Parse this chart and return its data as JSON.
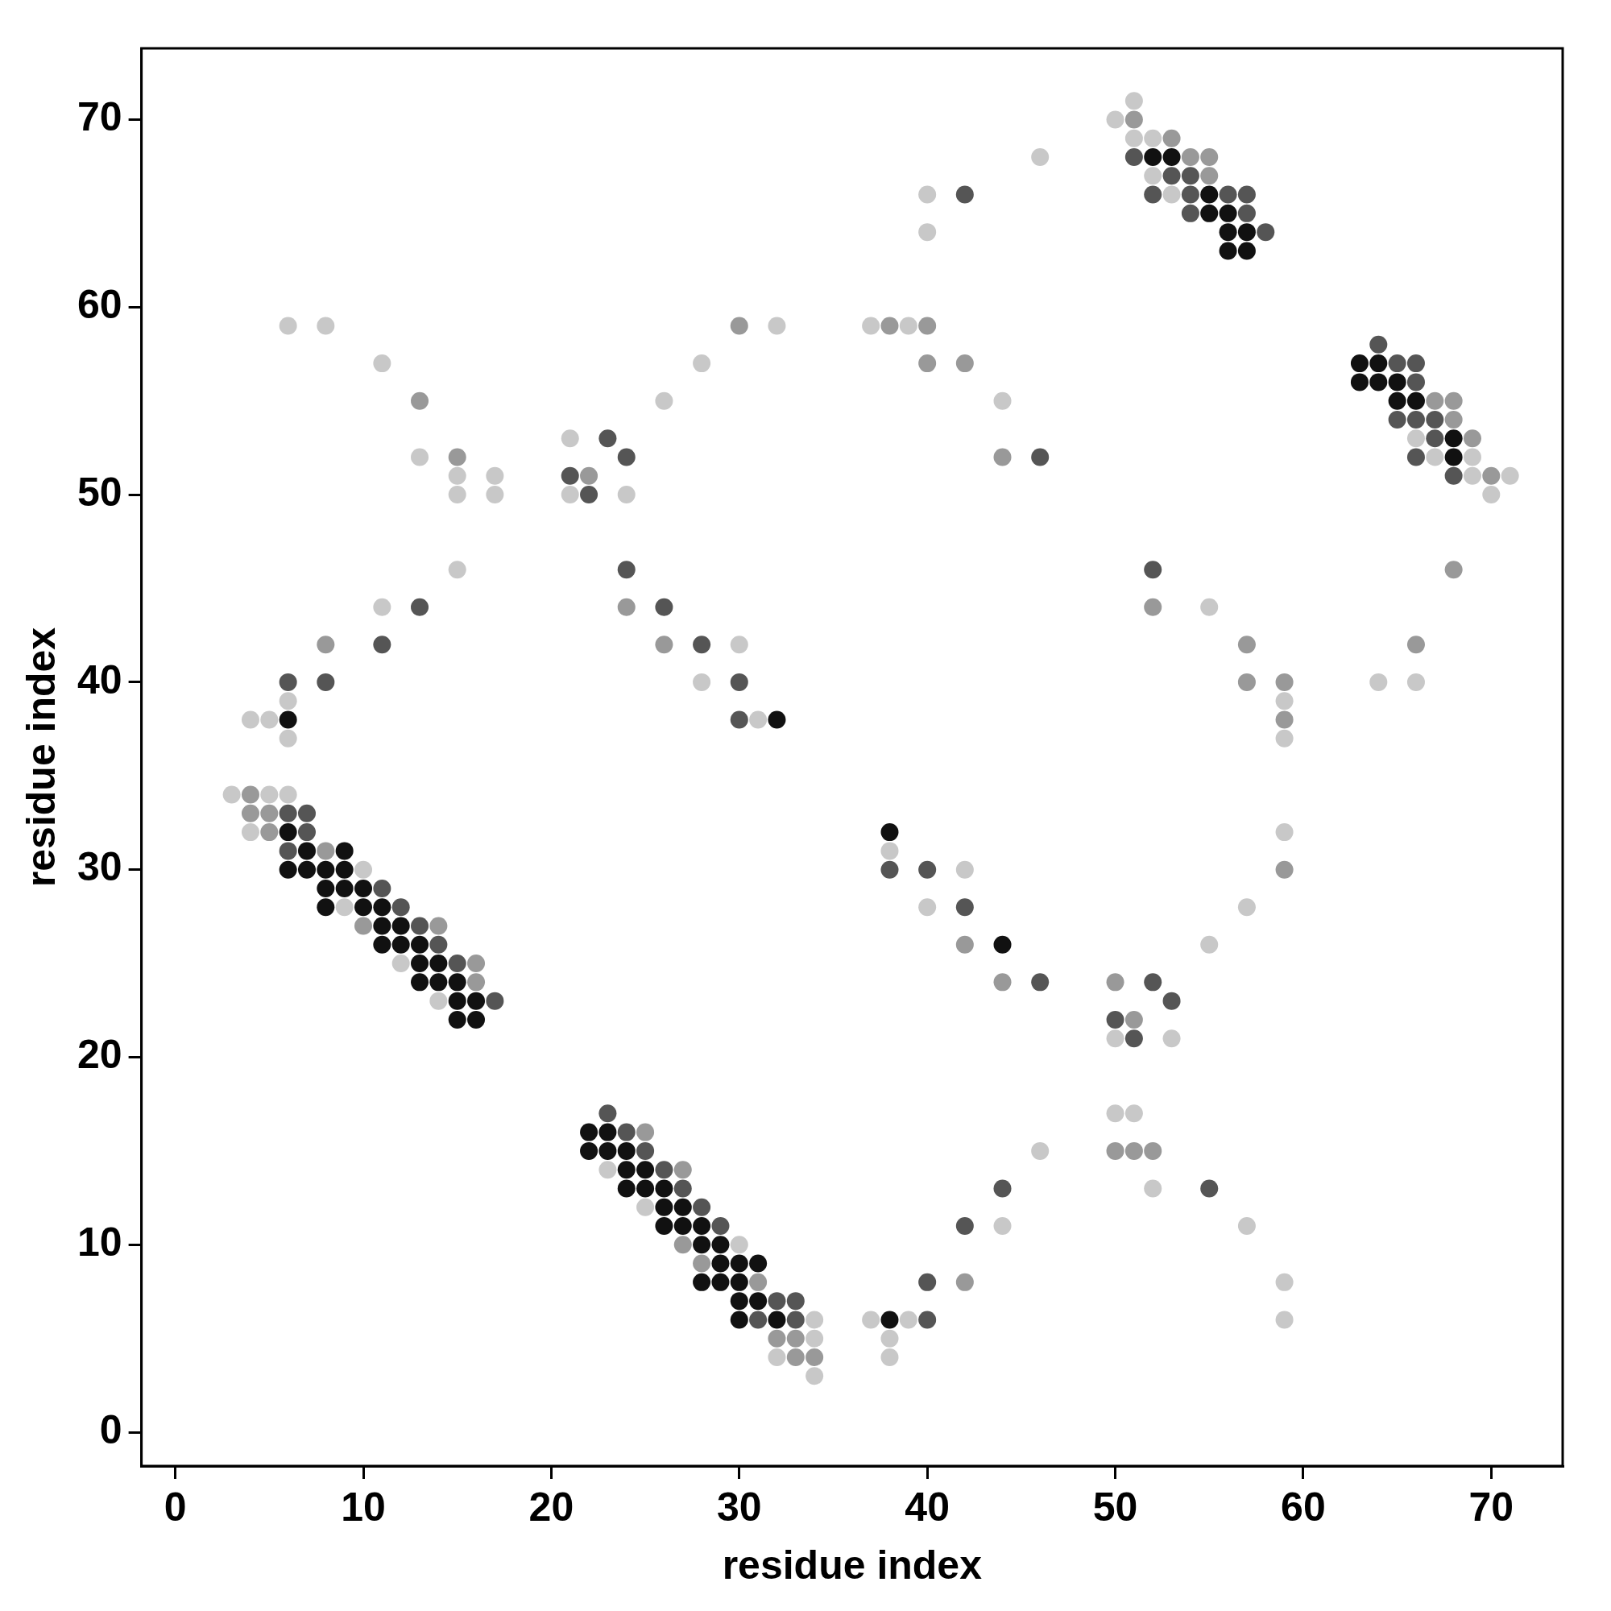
{
  "chart_data": {
    "type": "scatter",
    "xlabel": "residue index",
    "ylabel": "residue index",
    "xlim": [
      -1.8,
      73.8
    ],
    "ylim": [
      -1.8,
      73.8
    ],
    "xticks": [
      0,
      10,
      20,
      30,
      40,
      50,
      60,
      70
    ],
    "yticks": [
      0,
      10,
      20,
      30,
      40,
      50,
      60,
      70
    ],
    "grid": false,
    "marker": "circle",
    "series": [
      {
        "color": "#c8c8c8",
        "x": [
          3,
          5,
          6,
          4,
          10,
          9,
          12,
          14,
          6,
          6,
          4,
          5,
          11,
          15,
          13,
          11,
          6,
          8,
          15,
          15,
          17,
          17,
          21,
          21,
          24,
          28,
          30,
          31,
          26,
          28,
          32,
          37,
          39,
          40,
          40,
          44,
          46,
          51,
          50,
          51,
          52,
          52,
          53,
          66,
          67,
          69,
          69,
          71,
          70,
          64,
          66,
          55,
          59,
          59,
          59,
          57,
          55,
          38,
          42,
          40,
          50,
          53,
          50,
          51,
          46,
          52,
          44,
          39,
          37,
          38,
          38,
          57,
          59,
          59,
          23,
          25,
          30,
          34,
          34,
          32,
          34
        ],
        "values": [
          34,
          34,
          34,
          32,
          30,
          28,
          25,
          23,
          39,
          37,
          38,
          38,
          44,
          46,
          52,
          57,
          59,
          59,
          51,
          50,
          51,
          50,
          53,
          50,
          50,
          40,
          42,
          38,
          55,
          57,
          59,
          59,
          59,
          64,
          66,
          55,
          68,
          71,
          70,
          69,
          69,
          67,
          66,
          53,
          52,
          52,
          51,
          51,
          50,
          40,
          40,
          44,
          39,
          37,
          32,
          28,
          26,
          31,
          30,
          28,
          21,
          21,
          17,
          17,
          15,
          13,
          11,
          6,
          6,
          5,
          4,
          11,
          8,
          6,
          14,
          12,
          10,
          6,
          5,
          4,
          3
        ]
      },
      {
        "color": "#999999",
        "x": [
          4,
          4,
          5,
          5,
          8,
          10,
          14,
          16,
          16,
          8,
          13,
          15,
          22,
          24,
          26,
          30,
          38,
          40,
          40,
          42,
          44,
          51,
          53,
          54,
          55,
          55,
          67,
          68,
          68,
          69,
          70,
          68,
          66,
          52,
          57,
          57,
          59,
          59,
          59,
          42,
          44,
          50,
          51,
          50,
          51,
          52,
          42,
          25,
          27,
          27,
          28,
          31,
          32,
          33,
          33,
          34
        ],
        "values": [
          34,
          33,
          33,
          32,
          31,
          27,
          27,
          25,
          24,
          42,
          55,
          52,
          51,
          44,
          42,
          59,
          59,
          59,
          57,
          57,
          52,
          70,
          69,
          68,
          68,
          67,
          55,
          55,
          54,
          53,
          51,
          46,
          42,
          44,
          42,
          40,
          40,
          38,
          30,
          26,
          24,
          24,
          22,
          15,
          15,
          15,
          8,
          16,
          14,
          10,
          9,
          8,
          5,
          5,
          4,
          4
        ]
      },
      {
        "color": "#555555",
        "x": [
          6,
          8,
          11,
          13,
          21,
          22,
          23,
          24,
          24,
          26,
          28,
          30,
          30,
          6,
          7,
          7,
          6,
          11,
          12,
          13,
          14,
          15,
          17,
          42,
          46,
          51,
          53,
          54,
          52,
          54,
          56,
          57,
          54,
          57,
          58,
          64,
          65,
          66,
          66,
          65,
          66,
          67,
          67,
          66,
          68,
          52,
          38,
          40,
          42,
          46,
          52,
          53,
          50,
          51,
          55,
          44,
          42,
          40,
          40,
          23,
          24,
          25,
          26,
          27,
          28,
          29,
          32,
          33,
          31,
          33
        ],
        "values": [
          40,
          40,
          42,
          44,
          51,
          50,
          53,
          52,
          46,
          44,
          42,
          40,
          38,
          33,
          33,
          32,
          31,
          29,
          28,
          27,
          26,
          25,
          23,
          66,
          52,
          68,
          67,
          67,
          66,
          66,
          66,
          66,
          65,
          65,
          64,
          58,
          57,
          57,
          56,
          54,
          54,
          54,
          53,
          52,
          51,
          46,
          30,
          30,
          28,
          24,
          24,
          23,
          22,
          21,
          13,
          13,
          11,
          8,
          6,
          17,
          16,
          15,
          14,
          13,
          12,
          11,
          7,
          7,
          6,
          6
        ]
      },
      {
        "color": "#111111",
        "x": [
          6,
          32,
          6,
          9,
          7,
          6,
          7,
          8,
          9,
          8,
          9,
          10,
          8,
          10,
          11,
          11,
          12,
          11,
          12,
          13,
          13,
          14,
          13,
          14,
          15,
          15,
          16,
          15,
          16,
          52,
          53,
          55,
          55,
          56,
          56,
          57,
          56,
          57,
          63,
          64,
          63,
          64,
          65,
          65,
          66,
          68,
          68,
          38,
          44,
          38,
          22,
          23,
          22,
          23,
          24,
          24,
          25,
          24,
          25,
          26,
          26,
          27,
          26,
          27,
          28,
          28,
          29,
          29,
          30,
          31,
          28,
          29,
          30,
          30,
          31,
          30,
          32
        ],
        "values": [
          38,
          38,
          32,
          31,
          31,
          30,
          30,
          30,
          30,
          29,
          29,
          29,
          28,
          28,
          28,
          27,
          27,
          26,
          26,
          26,
          25,
          25,
          24,
          24,
          24,
          23,
          23,
          22,
          22,
          68,
          68,
          66,
          65,
          65,
          64,
          64,
          63,
          63,
          57,
          57,
          56,
          56,
          56,
          55,
          55,
          53,
          52,
          32,
          26,
          6,
          16,
          16,
          15,
          15,
          15,
          14,
          14,
          13,
          13,
          13,
          12,
          12,
          11,
          11,
          11,
          10,
          10,
          9,
          9,
          9,
          8,
          8,
          8,
          7,
          7,
          6,
          6
        ]
      }
    ]
  }
}
